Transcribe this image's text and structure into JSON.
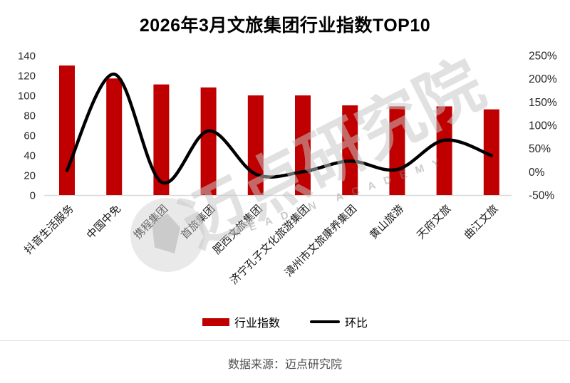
{
  "title": "2026年3月文旅集团行业指数TOP10",
  "chart_data": {
    "type": "combo-bar-line",
    "title": "2026年3月文旅集团行业指数TOP10",
    "categories": [
      "抖音生活服务",
      "中国中免",
      "携程集团",
      "首旅集团",
      "肥西文旅集团",
      "济宁孔子文化旅游集团",
      "漳州市文旅康养集团",
      "黄山旅游",
      "天府文旅",
      "曲江文旅"
    ],
    "series": [
      {
        "name": "行业指数",
        "type": "bar",
        "axis": "left",
        "color": "#c00000",
        "values": [
          130,
          117,
          111,
          108,
          100,
          100,
          90,
          89,
          89,
          86
        ]
      },
      {
        "name": "环比",
        "type": "line",
        "axis": "right",
        "unit": "%",
        "color": "#000000",
        "values": [
          3,
          210,
          -22,
          88,
          -5,
          0,
          23,
          5,
          68,
          35
        ]
      }
    ],
    "left_axis": {
      "min": 0,
      "max": 140,
      "step": 20,
      "ticks": [
        0,
        20,
        40,
        60,
        80,
        100,
        120,
        140
      ]
    },
    "right_axis": {
      "min": -50,
      "max": 250,
      "step": 50,
      "tick_values": [
        -50,
        0,
        50,
        100,
        150,
        200,
        250
      ],
      "tick_labels": [
        "-50%",
        "0%",
        "50%",
        "100%",
        "150%",
        "200%",
        "250%"
      ]
    },
    "grid": false,
    "legend_position": "bottom",
    "x_label_rotation_deg": -45
  },
  "legend": {
    "bar_label": "行业指数",
    "line_label": "环比"
  },
  "footer": {
    "source": "数据来源：迈点研究院"
  },
  "watermark": {
    "text": "迈点研究院",
    "subtext": "MEADIN ACADEMY"
  },
  "colors": {
    "bar": "#c00000",
    "line": "#000000",
    "baseline": "#d9d9d9",
    "tick_text": "#262626",
    "category_text": "#1a1a1a"
  }
}
